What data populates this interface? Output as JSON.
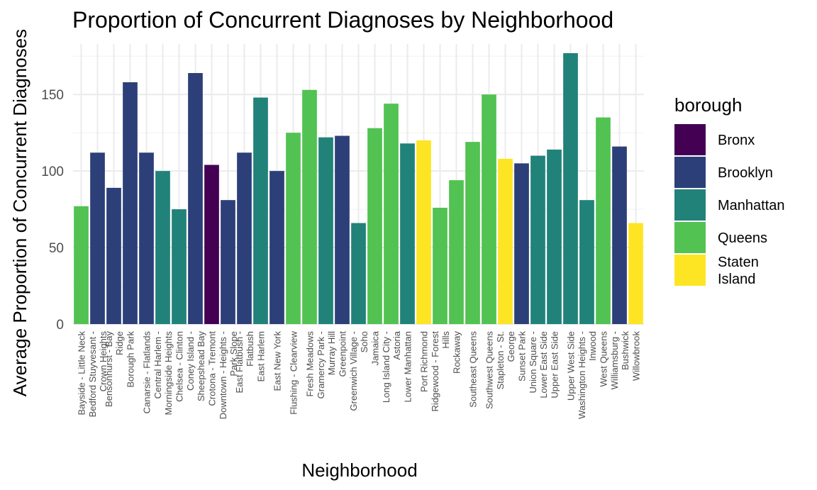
{
  "chart_data": {
    "type": "bar",
    "title": "Proportion of Concurrent Diagnoses by Neighborhood",
    "xlabel": "Neighborhood",
    "ylabel": "Average Proportion of Concurrent Diagnoses",
    "ylim": [
      0,
      183
    ],
    "yticks": [
      0,
      50,
      100,
      150
    ],
    "grid": true,
    "legend": {
      "title": "borough",
      "placement": "right"
    },
    "boroughs": [
      {
        "name": "Bronx",
        "label_lines": [
          "Bronx"
        ],
        "color": "#440154"
      },
      {
        "name": "Brooklyn",
        "label_lines": [
          "Brooklyn"
        ],
        "color": "#2d3f78"
      },
      {
        "name": "Manhattan",
        "label_lines": [
          "Manhattan"
        ],
        "color": "#218279"
      },
      {
        "name": "Queens",
        "label_lines": [
          "Queens"
        ],
        "color": "#52c252"
      },
      {
        "name": "Staten Island",
        "label_lines": [
          "Staten",
          "Island"
        ],
        "color": "#fde524"
      }
    ],
    "bars": [
      {
        "label_lines": [
          "Bayside - Little Neck"
        ],
        "value": 77,
        "borough": "Queens"
      },
      {
        "label_lines": [
          "Bedford Stuyvesant -",
          "Crown Heights"
        ],
        "value": 112,
        "borough": "Brooklyn"
      },
      {
        "label_lines": [
          "Bensonhurst - Bay",
          "Ridge"
        ],
        "value": 89,
        "borough": "Brooklyn"
      },
      {
        "label_lines": [
          "Borough Park"
        ],
        "value": 158,
        "borough": "Brooklyn"
      },
      {
        "label_lines": [
          "Canarsie - Flatlands"
        ],
        "value": 112,
        "borough": "Brooklyn"
      },
      {
        "label_lines": [
          "Central Harlem -",
          "Morningside Heights"
        ],
        "value": 100,
        "borough": "Manhattan"
      },
      {
        "label_lines": [
          "Chelsea - Clinton"
        ],
        "value": 75,
        "borough": "Manhattan"
      },
      {
        "label_lines": [
          "Coney Island -",
          "Sheepshead Bay"
        ],
        "value": 164,
        "borough": "Brooklyn"
      },
      {
        "label_lines": [
          "Crotona - Tremont"
        ],
        "value": 104,
        "borough": "Bronx"
      },
      {
        "label_lines": [
          "Downtown - Heights -",
          "Park Slope"
        ],
        "value": 81,
        "borough": "Brooklyn"
      },
      {
        "label_lines": [
          "East Flatbush -",
          "Flatbush"
        ],
        "value": 112,
        "borough": "Brooklyn"
      },
      {
        "label_lines": [
          "East Harlem"
        ],
        "value": 148,
        "borough": "Manhattan"
      },
      {
        "label_lines": [
          "East New York"
        ],
        "value": 100,
        "borough": "Brooklyn"
      },
      {
        "label_lines": [
          "Flushing - Clearview"
        ],
        "value": 125,
        "borough": "Queens"
      },
      {
        "label_lines": [
          "Fresh Meadows"
        ],
        "value": 153,
        "borough": "Queens"
      },
      {
        "label_lines": [
          "Gramercy Park -",
          "Murray Hill"
        ],
        "value": 122,
        "borough": "Manhattan"
      },
      {
        "label_lines": [
          "Greenpoint"
        ],
        "value": 123,
        "borough": "Brooklyn"
      },
      {
        "label_lines": [
          "Greenwich Village -",
          "Soho"
        ],
        "value": 66,
        "borough": "Manhattan"
      },
      {
        "label_lines": [
          "Jamaica"
        ],
        "value": 128,
        "borough": "Queens"
      },
      {
        "label_lines": [
          "Long Island City -",
          "Astoria"
        ],
        "value": 144,
        "borough": "Queens"
      },
      {
        "label_lines": [
          "Lower Manhattan"
        ],
        "value": 118,
        "borough": "Manhattan"
      },
      {
        "label_lines": [
          "Port Richmond"
        ],
        "value": 120,
        "borough": "Staten Island"
      },
      {
        "label_lines": [
          "Ridgewood - Forest",
          "Hills"
        ],
        "value": 76,
        "borough": "Queens"
      },
      {
        "label_lines": [
          "Rockaway"
        ],
        "value": 94,
        "borough": "Queens"
      },
      {
        "label_lines": [
          "Southeast Queens"
        ],
        "value": 119,
        "borough": "Queens"
      },
      {
        "label_lines": [
          "Southwest Queens"
        ],
        "value": 150,
        "borough": "Queens"
      },
      {
        "label_lines": [
          "Stapleton - St.",
          "George"
        ],
        "value": 108,
        "borough": "Staten Island"
      },
      {
        "label_lines": [
          "Sunset Park"
        ],
        "value": 105,
        "borough": "Brooklyn"
      },
      {
        "label_lines": [
          "Union Square -",
          "Lower East Side"
        ],
        "value": 110,
        "borough": "Manhattan"
      },
      {
        "label_lines": [
          "Upper East Side"
        ],
        "value": 114,
        "borough": "Manhattan"
      },
      {
        "label_lines": [
          "Upper West Side"
        ],
        "value": 177,
        "borough": "Manhattan"
      },
      {
        "label_lines": [
          "Washington Heights -",
          "Inwood"
        ],
        "value": 81,
        "borough": "Manhattan"
      },
      {
        "label_lines": [
          "West Queens"
        ],
        "value": 135,
        "borough": "Queens"
      },
      {
        "label_lines": [
          "Williamsburg -",
          "Bushwick"
        ],
        "value": 116,
        "borough": "Brooklyn"
      },
      {
        "label_lines": [
          "Willowbrook"
        ],
        "value": 66,
        "borough": "Staten Island"
      }
    ]
  }
}
